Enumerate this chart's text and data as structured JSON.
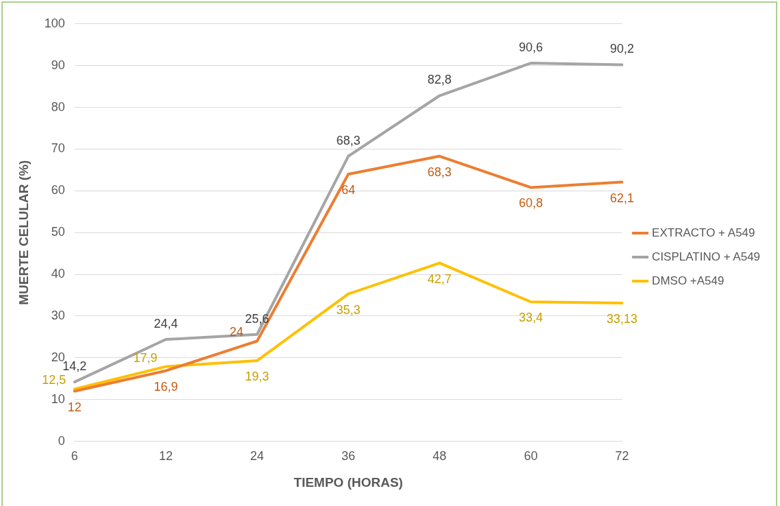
{
  "chart_data": {
    "type": "line",
    "xlabel": "TIEMPO (HORAS)",
    "ylabel": "MUERTE CELULAR (%)",
    "categories": [
      "6",
      "12",
      "24",
      "36",
      "48",
      "60",
      "72"
    ],
    "series": [
      {
        "name": "EXTRACTO + A549",
        "color": "#ed7d31",
        "values": [
          12,
          16.9,
          24,
          64,
          68.3,
          60.8,
          62.1
        ],
        "value_labels": [
          "12",
          "16,9",
          "24",
          "64",
          "68,3",
          "60,8",
          "62,1"
        ]
      },
      {
        "name": "CISPLATINO + A549",
        "color": "#a5a5a5",
        "values": [
          14.2,
          24.4,
          25.6,
          68.3,
          82.8,
          90.6,
          90.2
        ],
        "value_labels": [
          "14,2",
          "24,4",
          "25,6",
          "68,3",
          "82,8",
          "90,6",
          "90,2"
        ]
      },
      {
        "name": "DMSO +A549",
        "color": "#ffc000",
        "values": [
          12.5,
          17.9,
          19.3,
          35.3,
          42.7,
          33.4,
          33.13
        ],
        "value_labels": [
          "12,5",
          "17,9",
          "19,3",
          "35,3",
          "42,7",
          "33,4",
          "33,13"
        ]
      }
    ],
    "ylim": [
      0,
      100
    ],
    "yticks": [
      0,
      10,
      20,
      30,
      40,
      50,
      60,
      70,
      80,
      90,
      100
    ],
    "grid": "y",
    "legend": "right",
    "marker": "none",
    "line_style": "solid"
  }
}
